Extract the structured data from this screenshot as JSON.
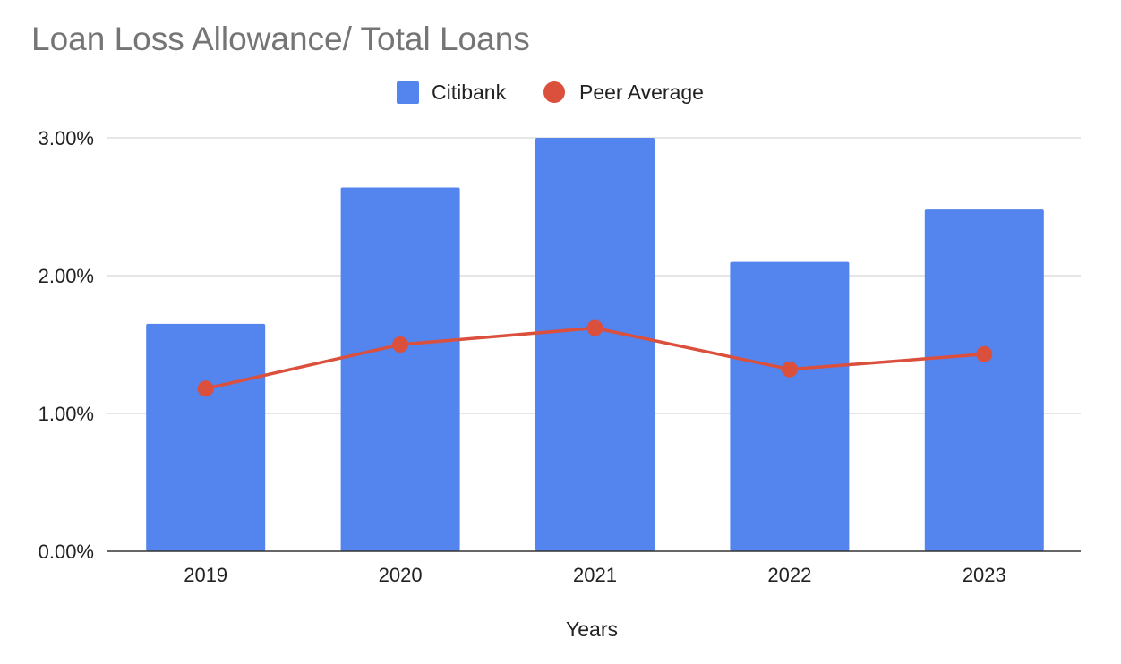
{
  "chart_data": {
    "type": "bar",
    "title": "Loan Loss Allowance/ Total Loans",
    "xlabel": "Years",
    "ylabel": "",
    "categories": [
      "2019",
      "2020",
      "2021",
      "2022",
      "2023"
    ],
    "series": [
      {
        "name": "Citibank",
        "type": "bar",
        "color": "#5484ED",
        "values": [
          1.65,
          2.64,
          3.0,
          2.1,
          2.48
        ]
      },
      {
        "name": "Peer Average",
        "type": "line",
        "color": "#DB4F3D",
        "values": [
          1.18,
          1.5,
          1.62,
          1.32,
          1.43
        ]
      }
    ],
    "ylim": [
      0,
      3
    ],
    "yticks": [
      0,
      1,
      2,
      3
    ],
    "ytick_labels": [
      "0.00%",
      "1.00%",
      "2.00%",
      "3.00%"
    ],
    "legend_position": "top-center",
    "grid": true
  }
}
